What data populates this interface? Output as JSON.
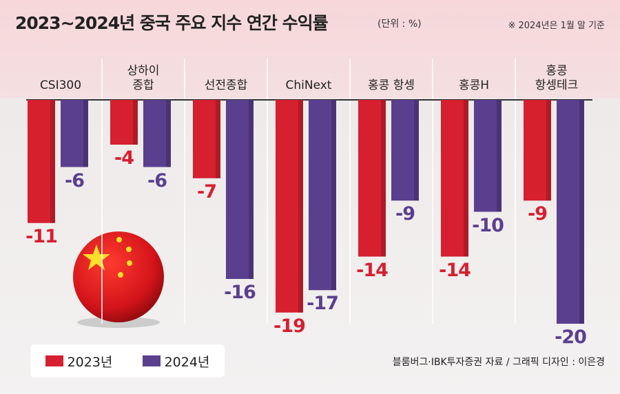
{
  "chart_data": {
    "type": "bar",
    "title": "2023~2024년 중국 주요 지수 연간 수익률",
    "unit": "(단위 : %)",
    "note": "※ 2024년은 1월 말 기준",
    "source": "블룸버그·IBK투자증권 자료 / 그래픽 디자인 : 이은경",
    "categories": [
      "CSI300",
      "상하이\n종합",
      "선전종합",
      "ChiNext",
      "홍콩 항셍",
      "홍콩H",
      "홍콩\n항셍테크"
    ],
    "series": [
      {
        "name": "2023년",
        "color": "#d6202f",
        "values": [
          -11,
          -4,
          -7,
          -19,
          -14,
          -14,
          -9
        ]
      },
      {
        "name": "2024년",
        "color": "#5b3f8f",
        "values": [
          -6,
          -6,
          -16,
          -17,
          -9,
          -10,
          -20
        ]
      }
    ]
  }
}
